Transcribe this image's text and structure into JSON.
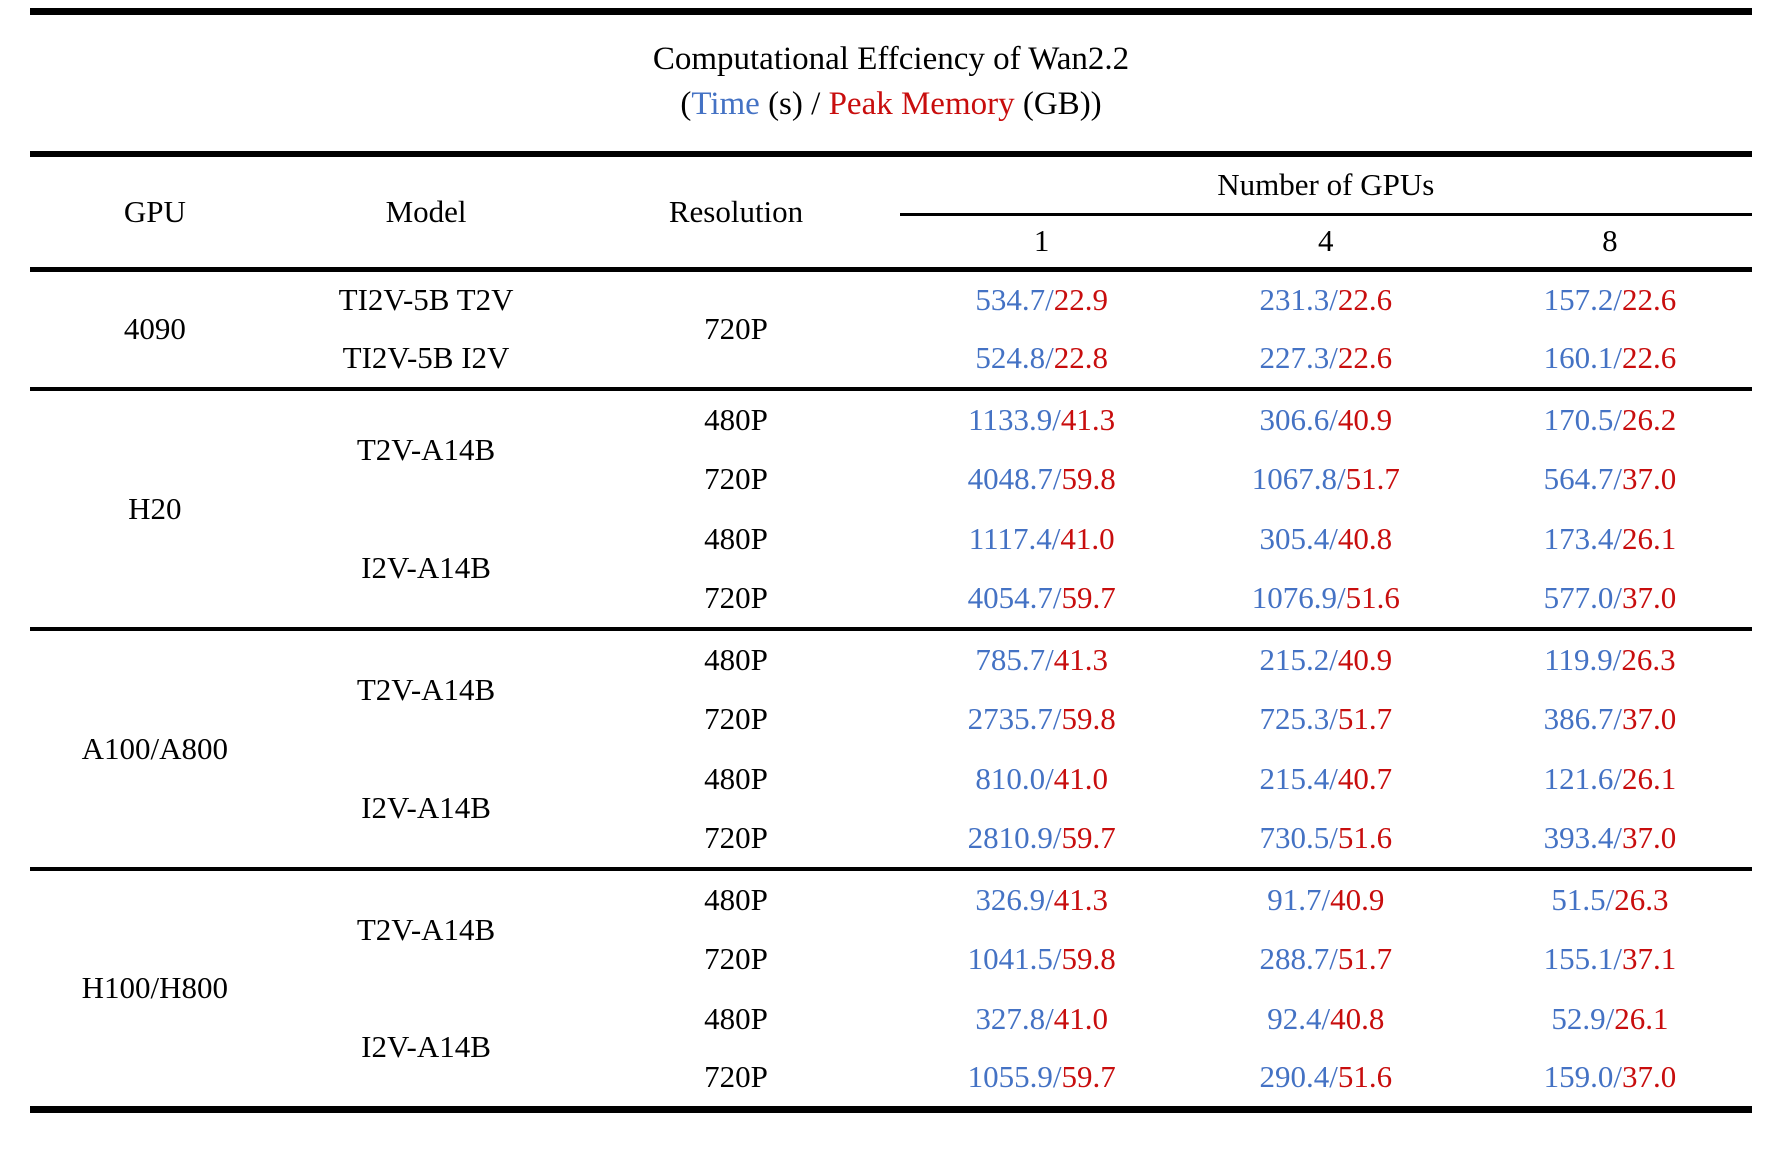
{
  "title": "Computational Effciency of Wan2.2",
  "subtitle": {
    "prefix": "(",
    "time_label": "Time",
    "middle": " (s) / ",
    "memory_label": "Peak Memory",
    "suffix": " (GB))"
  },
  "colors": {
    "time": "#4472C4",
    "memory": "#C80D0D",
    "text": "#000000",
    "rule": "#000000"
  },
  "table": {
    "columns": {
      "gpu": "GPU",
      "model": "Model",
      "resolution": "Resolution"
    },
    "gpu_count_header": "Number of GPUs",
    "gpu_counts": [
      "1",
      "4",
      "8"
    ],
    "value_format": "time_seconds/peak_memory_gb",
    "groups": [
      {
        "gpu": "4090",
        "rows": [
          {
            "model": "TI2V-5B T2V",
            "model_span": 1,
            "res": "720P",
            "res_span": 2,
            "cells": [
              "534.7/22.9",
              "231.3/22.6",
              "157.2/22.6"
            ]
          },
          {
            "model": "TI2V-5B I2V",
            "model_span": 1,
            "cells": [
              "524.8/22.8",
              "227.3/22.6",
              "160.1/22.6"
            ]
          }
        ]
      },
      {
        "gpu": "H20",
        "rows": [
          {
            "model": "T2V-A14B",
            "model_span": 2,
            "res": "480P",
            "res_span": 1,
            "cells": [
              "1133.9/41.3",
              "306.6/40.9",
              "170.5/26.2"
            ]
          },
          {
            "res": "720P",
            "res_span": 1,
            "cells": [
              "4048.7/59.8",
              "1067.8/51.7",
              "564.7/37.0"
            ]
          },
          {
            "model": "I2V-A14B",
            "model_span": 2,
            "res": "480P",
            "res_span": 1,
            "cells": [
              "1117.4/41.0",
              "305.4/40.8",
              "173.4/26.1"
            ]
          },
          {
            "res": "720P",
            "res_span": 1,
            "cells": [
              "4054.7/59.7",
              "1076.9/51.6",
              "577.0/37.0"
            ]
          }
        ]
      },
      {
        "gpu": "A100/A800",
        "rows": [
          {
            "model": "T2V-A14B",
            "model_span": 2,
            "res": "480P",
            "res_span": 1,
            "cells": [
              "785.7/41.3",
              "215.2/40.9",
              "119.9/26.3"
            ]
          },
          {
            "res": "720P",
            "res_span": 1,
            "cells": [
              "2735.7/59.8",
              "725.3/51.7",
              "386.7/37.0"
            ]
          },
          {
            "model": "I2V-A14B",
            "model_span": 2,
            "res": "480P",
            "res_span": 1,
            "cells": [
              "810.0/41.0",
              "215.4/40.7",
              "121.6/26.1"
            ]
          },
          {
            "res": "720P",
            "res_span": 1,
            "cells": [
              "2810.9/59.7",
              "730.5/51.6",
              "393.4/37.0"
            ]
          }
        ]
      },
      {
        "gpu": "H100/H800",
        "rows": [
          {
            "model": "T2V-A14B",
            "model_span": 2,
            "res": "480P",
            "res_span": 1,
            "cells": [
              "326.9/41.3",
              "91.7/40.9",
              "51.5/26.3"
            ]
          },
          {
            "res": "720P",
            "res_span": 1,
            "cells": [
              "1041.5/59.8",
              "288.7/51.7",
              "155.1/37.1"
            ]
          },
          {
            "model": "I2V-A14B",
            "model_span": 2,
            "res": "480P",
            "res_span": 1,
            "cells": [
              "327.8/41.0",
              "92.4/40.8",
              "52.9/26.1"
            ]
          },
          {
            "res": "720P",
            "res_span": 1,
            "cells": [
              "1055.9/59.7",
              "290.4/51.6",
              "159.0/37.0"
            ]
          }
        ]
      }
    ]
  }
}
